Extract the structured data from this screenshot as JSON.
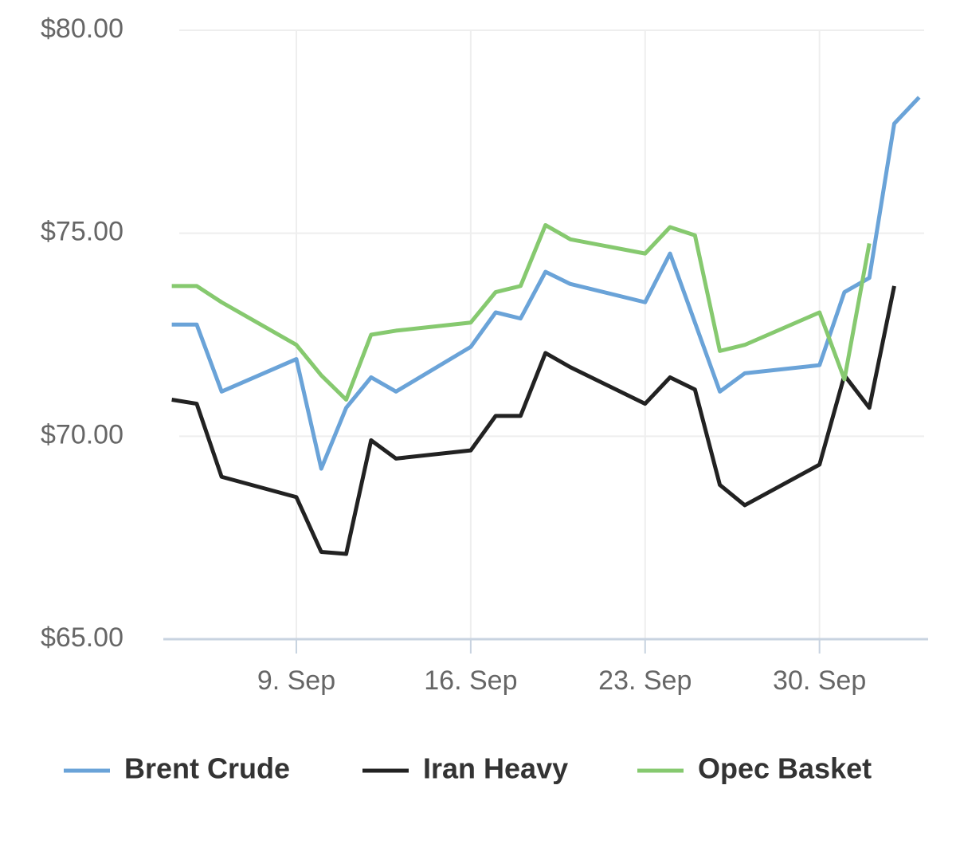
{
  "chart_data": {
    "type": "line",
    "x": [
      4,
      5,
      6,
      9,
      10,
      11,
      12,
      13,
      16,
      17,
      18,
      19,
      20,
      23,
      24,
      25,
      26,
      27,
      30,
      31,
      32,
      33,
      34
    ],
    "series": [
      {
        "name": "Brent Crude",
        "color": "#6aa3d8",
        "values": [
          72.75,
          72.75,
          71.1,
          71.9,
          69.2,
          70.7,
          71.45,
          71.1,
          72.2,
          73.05,
          72.9,
          74.05,
          73.75,
          73.3,
          74.5,
          72.8,
          71.1,
          71.55,
          71.75,
          73.55,
          73.9,
          77.7,
          78.35
        ]
      },
      {
        "name": "Iran Heavy",
        "color": "#222222",
        "values": [
          70.9,
          70.8,
          69.0,
          68.5,
          67.15,
          67.1,
          69.9,
          69.45,
          69.65,
          70.5,
          70.5,
          72.05,
          71.7,
          70.8,
          71.45,
          71.15,
          68.8,
          68.3,
          69.3,
          71.5,
          70.7,
          73.7,
          null
        ]
      },
      {
        "name": "Opec Basket",
        "color": "#86c96f",
        "values": [
          73.7,
          73.7,
          73.3,
          72.25,
          71.5,
          70.9,
          72.5,
          72.6,
          72.8,
          73.55,
          73.7,
          75.2,
          74.85,
          74.5,
          75.15,
          74.95,
          72.1,
          72.25,
          73.05,
          71.4,
          74.75,
          null,
          null
        ]
      }
    ],
    "xlim": [
      3.66,
      34.2
    ],
    "xticks": [
      {
        "value": 9,
        "label": "9. Sep"
      },
      {
        "value": 16,
        "label": "16. Sep"
      },
      {
        "value": 23,
        "label": "23. Sep"
      },
      {
        "value": 30,
        "label": "30. Sep"
      }
    ],
    "ylim": [
      65,
      80
    ],
    "yticks": [
      {
        "value": 65,
        "label": "$65.00"
      },
      {
        "value": 70,
        "label": "$70.00"
      },
      {
        "value": 75,
        "label": "$75.00"
      },
      {
        "value": 80,
        "label": "$80.00"
      }
    ],
    "grid": true,
    "legend": "bottom"
  }
}
